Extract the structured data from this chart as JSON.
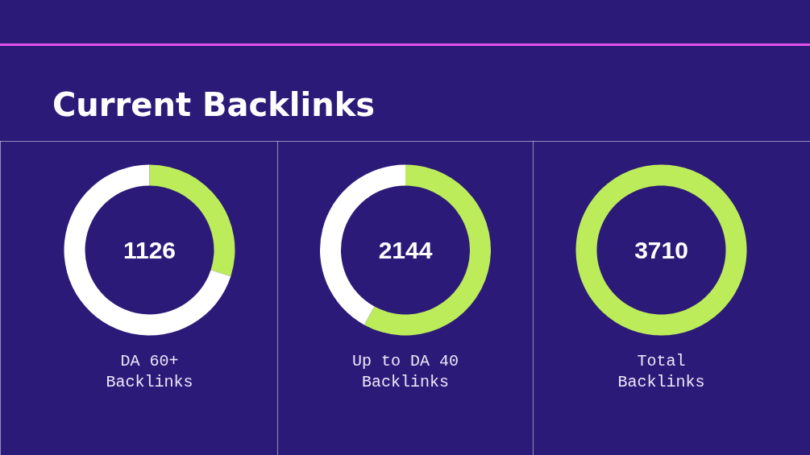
{
  "chart_data": [
    {
      "type": "donut",
      "title": "Current Backlinks",
      "categories": [
        null,
        null
      ],
      "values": [
        30,
        70
      ],
      "colors": [
        "#bdec5a",
        "#ffffff"
      ],
      "annotations": [
        "1126"
      ],
      "xlabel": "DA 60+ Backlinks"
    },
    {
      "type": "donut",
      "categories": [
        null,
        null
      ],
      "values": [
        58,
        42
      ],
      "colors": [
        "#bdec5a",
        "#ffffff"
      ],
      "annotations": [
        "2144"
      ],
      "xlabel": "Up to DA 40 Backlinks"
    },
    {
      "type": "donut",
      "categories": [
        null
      ],
      "values": [
        100
      ],
      "colors": [
        "#bdec5a"
      ],
      "annotations": [
        "3710"
      ],
      "xlabel": "Total Backlinks"
    }
  ]
}
